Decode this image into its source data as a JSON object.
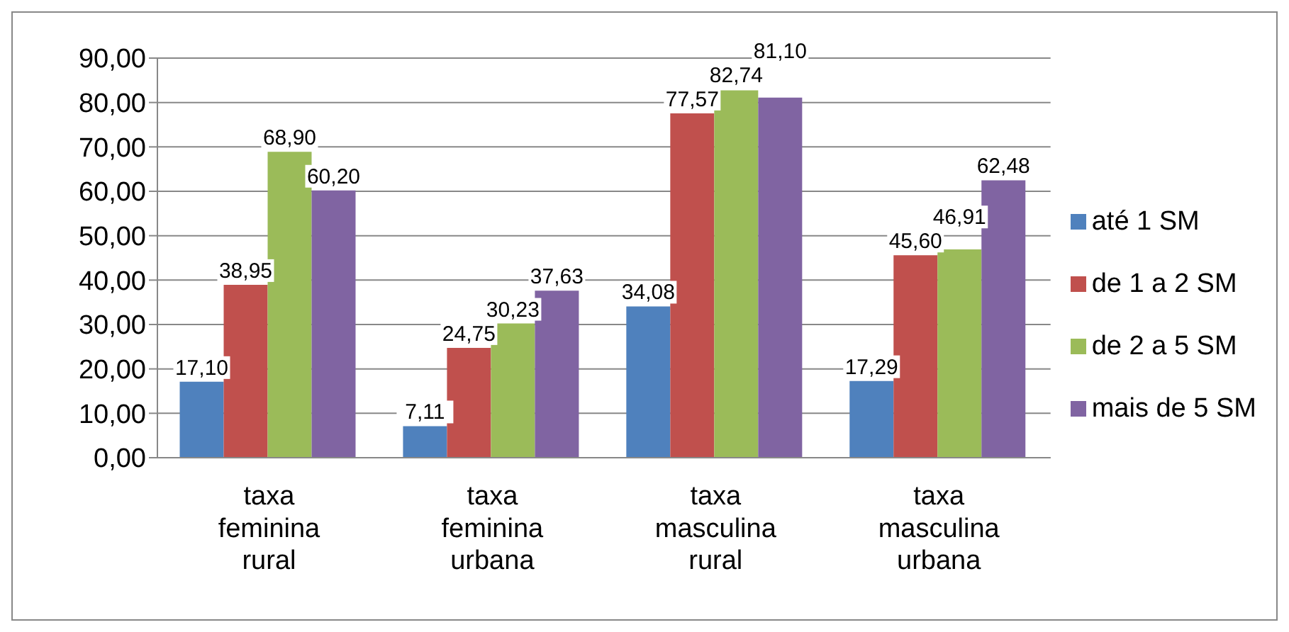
{
  "chart_data": {
    "type": "bar",
    "categories": [
      "taxa feminina rural",
      "taxa feminina urbana",
      "taxa masculina rural",
      "taxa masculina urbana"
    ],
    "series": [
      {
        "name": "até 1 SM",
        "color": "#4f81bd",
        "values": [
          17.1,
          7.11,
          34.08,
          17.29
        ],
        "value_labels": [
          "17,10",
          "7,11",
          "34,08",
          "17,29"
        ]
      },
      {
        "name": "de 1 a 2 SM",
        "color": "#c0504d",
        "values": [
          38.95,
          24.75,
          77.57,
          45.6
        ],
        "value_labels": [
          "38,95",
          "24,75",
          "77,57",
          "45,60"
        ]
      },
      {
        "name": "de 2 a 5 SM",
        "color": "#9bbb59",
        "values": [
          68.9,
          30.23,
          82.74,
          46.91
        ],
        "value_labels": [
          "68,90",
          "30,23",
          "82,74",
          "46,91"
        ]
      },
      {
        "name": "mais de 5 SM",
        "color": "#8064a2",
        "values": [
          60.2,
          37.63,
          81.1,
          62.48
        ],
        "value_labels": [
          "60,20",
          "37,63",
          "81,10",
          "62,48"
        ]
      }
    ],
    "ylim": [
      0,
      90
    ],
    "yticks": [
      {
        "value": 0,
        "label": "0,00"
      },
      {
        "value": 10,
        "label": "10,00"
      },
      {
        "value": 20,
        "label": "20,00"
      },
      {
        "value": 30,
        "label": "30,00"
      },
      {
        "value": 40,
        "label": "40,00"
      },
      {
        "value": 50,
        "label": "50,00"
      },
      {
        "value": 60,
        "label": "60,00"
      },
      {
        "value": 70,
        "label": "70,00"
      },
      {
        "value": 80,
        "label": "80,00"
      },
      {
        "value": 90,
        "label": "90,00"
      }
    ],
    "grid": "y",
    "legend": "right"
  }
}
